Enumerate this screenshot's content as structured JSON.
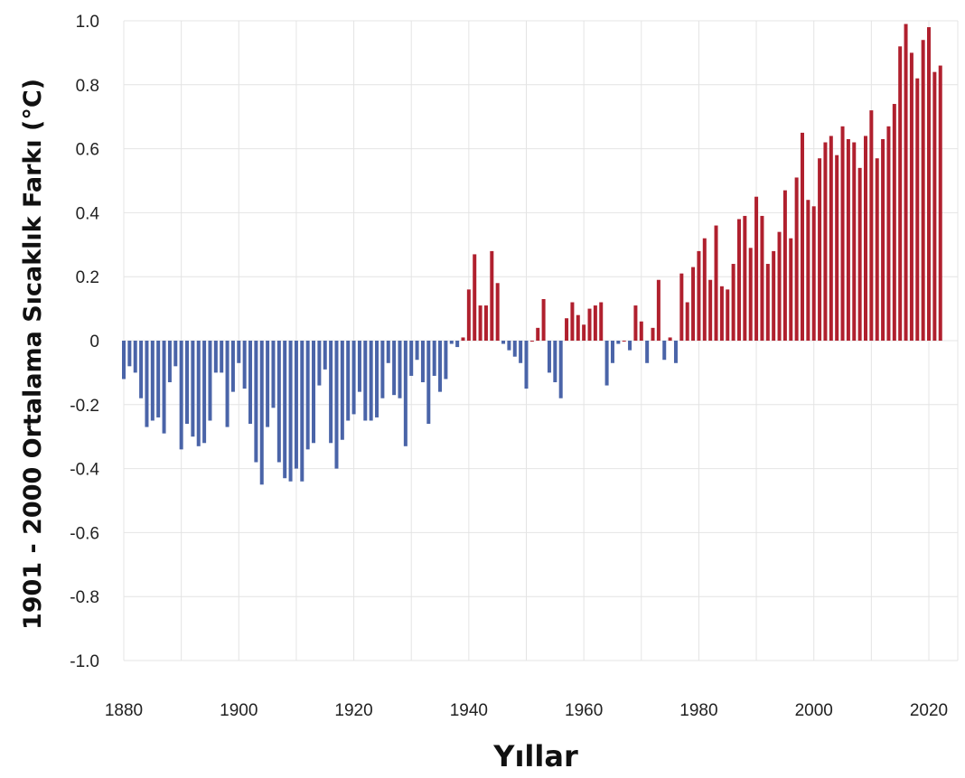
{
  "chart_data": {
    "type": "bar",
    "xlabel": "Yıllar",
    "ylabel": "1901 - 2000 Ortalama Sıcaklık Farkı (°C)",
    "ylim": [
      -1.0,
      1.0
    ],
    "xlim": [
      1880,
      2022
    ],
    "yticks": [
      "1.0",
      "0.8",
      "0.6",
      "0.4",
      "0.2",
      "0",
      "-0.2",
      "-0.4",
      "-0.6",
      "-0.8",
      "-1.0"
    ],
    "ytick_values": [
      1.0,
      0.8,
      0.6,
      0.4,
      0.2,
      0,
      -0.2,
      -0.4,
      -0.6,
      -0.8,
      -1.0
    ],
    "xticks": [
      "1880",
      "1900",
      "1920",
      "1940",
      "1960",
      "1980",
      "2000",
      "2020"
    ],
    "xtick_values": [
      1880,
      1900,
      1920,
      1940,
      1960,
      1980,
      2000,
      2020
    ],
    "grid": true,
    "colors": {
      "negative": "#4a64a8",
      "positive": "#b0202e",
      "grid": "#e4e4e4"
    },
    "start_year": 1880,
    "values": [
      -0.12,
      -0.08,
      -0.1,
      -0.18,
      -0.27,
      -0.25,
      -0.24,
      -0.29,
      -0.13,
      -0.08,
      -0.34,
      -0.26,
      -0.3,
      -0.33,
      -0.32,
      -0.25,
      -0.1,
      -0.1,
      -0.27,
      -0.16,
      -0.07,
      -0.15,
      -0.26,
      -0.38,
      -0.45,
      -0.27,
      -0.21,
      -0.38,
      -0.43,
      -0.44,
      -0.4,
      -0.44,
      -0.34,
      -0.32,
      -0.14,
      -0.09,
      -0.32,
      -0.4,
      -0.31,
      -0.25,
      -0.23,
      -0.16,
      -0.25,
      -0.25,
      -0.24,
      -0.18,
      -0.07,
      -0.17,
      -0.18,
      -0.33,
      -0.11,
      -0.06,
      -0.13,
      -0.26,
      -0.11,
      -0.16,
      -0.12,
      -0.01,
      -0.02,
      0.01,
      0.16,
      0.27,
      0.11,
      0.11,
      0.28,
      0.18,
      -0.01,
      -0.03,
      -0.05,
      -0.07,
      -0.15,
      0.0,
      0.04,
      0.13,
      -0.1,
      -0.13,
      -0.18,
      0.07,
      0.12,
      0.08,
      0.05,
      0.1,
      0.11,
      0.12,
      -0.14,
      -0.07,
      -0.01,
      0.0,
      -0.03,
      0.11,
      0.06,
      -0.07,
      0.04,
      0.19,
      -0.06,
      0.01,
      -0.07,
      0.21,
      0.12,
      0.23,
      0.28,
      0.32,
      0.19,
      0.36,
      0.17,
      0.16,
      0.24,
      0.38,
      0.39,
      0.29,
      0.45,
      0.39,
      0.24,
      0.28,
      0.34,
      0.47,
      0.32,
      0.51,
      0.65,
      0.44,
      0.42,
      0.57,
      0.62,
      0.64,
      0.58,
      0.67,
      0.63,
      0.62,
      0.54,
      0.64,
      0.72,
      0.57,
      0.63,
      0.67,
      0.74,
      0.92,
      0.99,
      0.9,
      0.82,
      0.94,
      0.98,
      0.84,
      0.86
    ]
  }
}
